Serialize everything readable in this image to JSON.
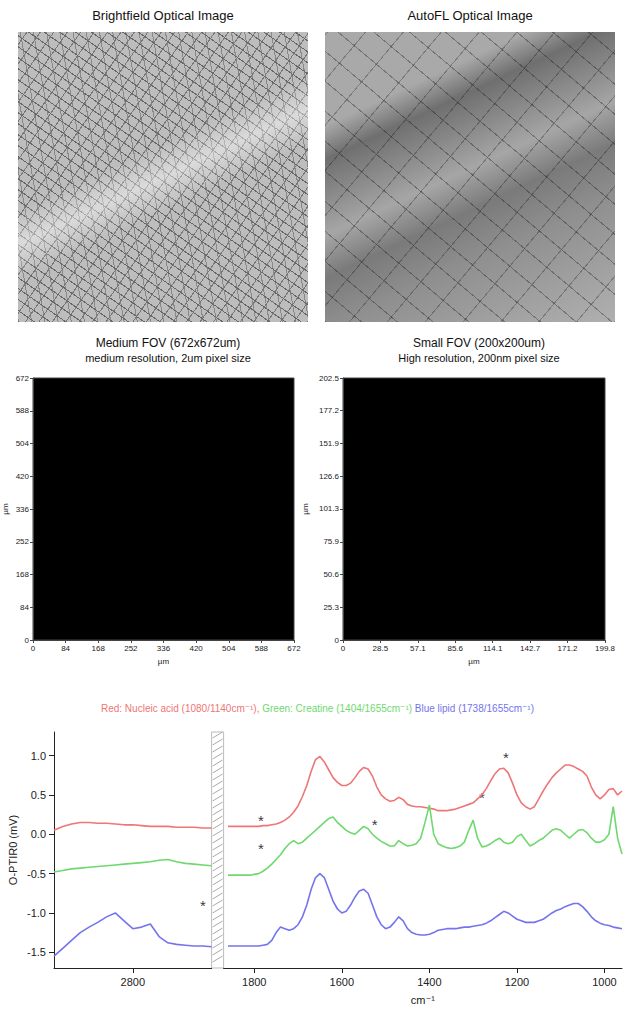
{
  "images": [
    {
      "title": "Brightfield Optical Image"
    },
    {
      "title": "AutoFL Optical Image"
    }
  ],
  "maps": [
    {
      "title": "Medium FOV (672x672um)",
      "subtitle": "medium resolution, 2um pixel size",
      "xlim": [
        0,
        672
      ],
      "ylim": [
        0,
        672
      ],
      "xticks": [
        0,
        84,
        168,
        252,
        336,
        420,
        504,
        588,
        672
      ],
      "yticks": [
        0,
        84,
        168,
        252,
        336,
        420,
        504,
        588,
        672
      ],
      "xlabel": "µm",
      "ylabel": "µm"
    },
    {
      "title": "Small FOV (200x200um)",
      "subtitle": "High resolution, 200nm pixel size",
      "xlim": [
        0,
        199.8
      ],
      "ylim": [
        0,
        202.5
      ],
      "xticks": [
        0,
        28.5,
        57.1,
        85.6,
        114.1,
        142.7,
        171.2,
        199.8
      ],
      "yticks": [
        0,
        25.3,
        50.6,
        75.9,
        101.3,
        126.6,
        151.9,
        177.2,
        202.5
      ],
      "xlabel": "µm",
      "ylabel": "µm"
    }
  ],
  "chart_data": {
    "type": "line",
    "xlabel": "cm⁻¹",
    "ylabel": "O-PTIR0 (mV)",
    "xlim": [
      2980,
      960
    ],
    "x_break": [
      2620,
      1870
    ],
    "xticks": [
      2800,
      1800,
      1600,
      1400,
      1200,
      1000
    ],
    "ylim": [
      -1.7,
      1.3
    ],
    "yticks": [
      -1.5,
      {
        "value": -1,
        "label": "-1.0"
      },
      -0.5,
      {
        "value": 0,
        "label": "0.0"
      },
      0.5,
      {
        "value": 1,
        "label": "1.0"
      }
    ],
    "grid": false,
    "x": [
      2980,
      2960,
      2940,
      2920,
      2900,
      2880,
      2860,
      2840,
      2820,
      2800,
      2780,
      2760,
      2740,
      2720,
      2700,
      2680,
      2660,
      2640,
      2620,
      1860,
      1850,
      1840,
      1830,
      1820,
      1810,
      1800,
      1790,
      1780,
      1770,
      1760,
      1750,
      1740,
      1730,
      1720,
      1710,
      1700,
      1690,
      1680,
      1670,
      1660,
      1650,
      1640,
      1630,
      1620,
      1610,
      1600,
      1590,
      1580,
      1570,
      1560,
      1550,
      1540,
      1530,
      1520,
      1510,
      1500,
      1490,
      1480,
      1470,
      1460,
      1450,
      1440,
      1430,
      1420,
      1410,
      1400,
      1390,
      1380,
      1370,
      1360,
      1350,
      1340,
      1330,
      1320,
      1310,
      1300,
      1290,
      1280,
      1270,
      1260,
      1250,
      1240,
      1230,
      1220,
      1210,
      1200,
      1190,
      1180,
      1170,
      1160,
      1150,
      1140,
      1130,
      1120,
      1110,
      1100,
      1090,
      1080,
      1070,
      1060,
      1050,
      1040,
      1030,
      1020,
      1010,
      1000,
      990,
      980,
      970,
      960
    ],
    "series": [
      {
        "name": "Red: Nucleic acid (1080/1140cm⁻¹),",
        "color": "#ee7676",
        "values": [
          0.05,
          0.1,
          0.13,
          0.15,
          0.15,
          0.14,
          0.14,
          0.13,
          0.12,
          0.12,
          0.11,
          0.1,
          0.1,
          0.1,
          0.09,
          0.09,
          0.09,
          0.08,
          0.08,
          0.1,
          0.1,
          0.1,
          0.1,
          0.1,
          0.1,
          0.1,
          0.1,
          0.11,
          0.11,
          0.12,
          0.13,
          0.15,
          0.18,
          0.22,
          0.28,
          0.36,
          0.48,
          0.62,
          0.8,
          0.95,
          0.99,
          0.92,
          0.82,
          0.72,
          0.66,
          0.62,
          0.62,
          0.65,
          0.72,
          0.8,
          0.85,
          0.83,
          0.74,
          0.6,
          0.5,
          0.45,
          0.42,
          0.43,
          0.47,
          0.44,
          0.38,
          0.36,
          0.35,
          0.35,
          0.34,
          0.33,
          0.32,
          0.3,
          0.3,
          0.3,
          0.31,
          0.32,
          0.34,
          0.36,
          0.38,
          0.4,
          0.45,
          0.5,
          0.58,
          0.68,
          0.77,
          0.83,
          0.84,
          0.78,
          0.65,
          0.5,
          0.4,
          0.35,
          0.32,
          0.35,
          0.45,
          0.55,
          0.64,
          0.72,
          0.78,
          0.83,
          0.88,
          0.88,
          0.86,
          0.83,
          0.8,
          0.74,
          0.6,
          0.5,
          0.45,
          0.5,
          0.57,
          0.58,
          0.5,
          0.55
        ]
      },
      {
        "name": "Green: Creatine (1404/1655cm⁻¹)",
        "color": "#6fd86f",
        "values": [
          -0.48,
          -0.46,
          -0.44,
          -0.43,
          -0.42,
          -0.41,
          -0.4,
          -0.39,
          -0.38,
          -0.37,
          -0.36,
          -0.35,
          -0.33,
          -0.32,
          -0.35,
          -0.37,
          -0.38,
          -0.39,
          -0.4,
          -0.52,
          -0.52,
          -0.52,
          -0.52,
          -0.52,
          -0.52,
          -0.51,
          -0.5,
          -0.47,
          -0.43,
          -0.38,
          -0.32,
          -0.26,
          -0.18,
          -0.12,
          -0.08,
          -0.12,
          -0.1,
          -0.05,
          0.0,
          0.05,
          0.1,
          0.15,
          0.2,
          0.22,
          0.15,
          0.1,
          0.05,
          0.02,
          0.0,
          0.05,
          0.1,
          0.07,
          0.0,
          -0.05,
          -0.09,
          -0.12,
          -0.15,
          -0.15,
          -0.08,
          -0.12,
          -0.15,
          -0.14,
          -0.12,
          -0.05,
          0.15,
          0.37,
          0.0,
          -0.12,
          -0.15,
          -0.17,
          -0.18,
          -0.17,
          -0.15,
          -0.1,
          0.05,
          0.18,
          -0.05,
          -0.16,
          -0.15,
          -0.12,
          -0.08,
          -0.05,
          -0.1,
          -0.12,
          -0.1,
          -0.03,
          0.0,
          -0.08,
          -0.15,
          -0.12,
          -0.08,
          -0.05,
          0.0,
          0.05,
          0.07,
          0.05,
          0.0,
          -0.05,
          0.0,
          0.05,
          0.06,
          0.02,
          -0.05,
          -0.1,
          -0.1,
          -0.07,
          0.0,
          0.35,
          -0.05,
          -0.25
        ]
      },
      {
        "name": "Blue lipid (1738/1655cm⁻¹)",
        "color": "#7474ec",
        "values": [
          -1.55,
          -1.45,
          -1.35,
          -1.25,
          -1.18,
          -1.12,
          -1.05,
          -1.0,
          -1.1,
          -1.2,
          -1.18,
          -1.14,
          -1.3,
          -1.38,
          -1.4,
          -1.41,
          -1.42,
          -1.42,
          -1.43,
          -1.42,
          -1.42,
          -1.42,
          -1.42,
          -1.42,
          -1.42,
          -1.42,
          -1.42,
          -1.41,
          -1.4,
          -1.35,
          -1.25,
          -1.18,
          -1.2,
          -1.22,
          -1.2,
          -1.15,
          -1.05,
          -0.9,
          -0.7,
          -0.55,
          -0.5,
          -0.55,
          -0.7,
          -0.85,
          -0.95,
          -1.0,
          -0.98,
          -0.9,
          -0.8,
          -0.72,
          -0.7,
          -0.75,
          -0.9,
          -1.05,
          -1.15,
          -1.2,
          -1.18,
          -1.12,
          -1.05,
          -1.1,
          -1.2,
          -1.25,
          -1.27,
          -1.28,
          -1.28,
          -1.27,
          -1.25,
          -1.22,
          -1.21,
          -1.2,
          -1.2,
          -1.2,
          -1.19,
          -1.18,
          -1.18,
          -1.17,
          -1.16,
          -1.15,
          -1.13,
          -1.1,
          -1.06,
          -1.02,
          -0.98,
          -1.0,
          -1.04,
          -1.08,
          -1.1,
          -1.12,
          -1.12,
          -1.12,
          -1.1,
          -1.08,
          -1.04,
          -1.0,
          -0.97,
          -0.95,
          -0.92,
          -0.9,
          -0.88,
          -0.88,
          -0.92,
          -0.98,
          -1.05,
          -1.1,
          -1.13,
          -1.15,
          -1.16,
          -1.18,
          -1.19,
          -1.2
        ]
      }
    ],
    "annotations": [
      {
        "text": "*",
        "x": 1225,
        "y": 0.97
      },
      {
        "text": "*",
        "x": 1280,
        "y": 0.47
      },
      {
        "text": "*",
        "x": 1525,
        "y": 0.12
      },
      {
        "text": "*",
        "x": 1785,
        "y": 0.18
      },
      {
        "text": "*",
        "x": 1785,
        "y": -0.18
      },
      {
        "text": "*",
        "x": 2640,
        "y": -0.9
      }
    ]
  }
}
